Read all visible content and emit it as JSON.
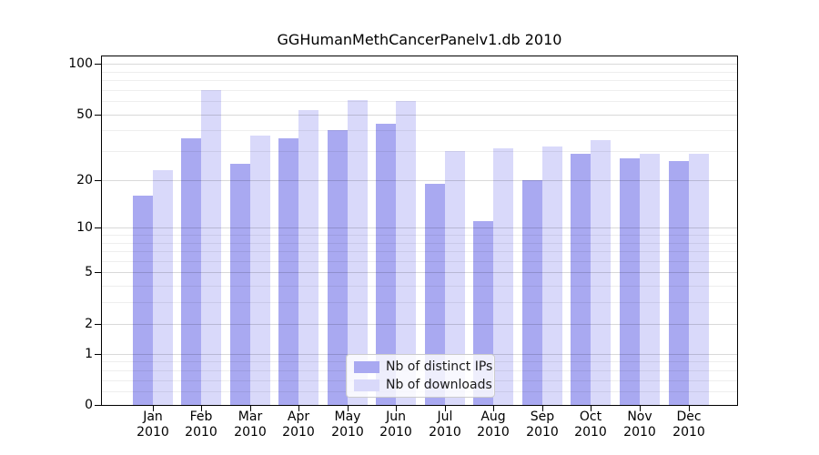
{
  "chart_data": {
    "type": "bar",
    "title": "GGHumanMethCancerPanelv1.db 2010",
    "xlabel": "",
    "ylabel": "",
    "year_label": "2010",
    "categories": [
      "Jan",
      "Feb",
      "Mar",
      "Apr",
      "May",
      "Jun",
      "Jul",
      "Aug",
      "Sep",
      "Oct",
      "Nov",
      "Dec"
    ],
    "series": [
      {
        "name": "Nb of distinct IPs",
        "color": "#a9a9f1",
        "values": [
          16,
          36,
          25,
          36,
          40,
          44,
          19,
          11,
          20,
          29,
          27,
          26
        ]
      },
      {
        "name": "Nb of downloads",
        "color": "#d9d9fa",
        "values": [
          23,
          70,
          37,
          53,
          61,
          60,
          30,
          31,
          32,
          35,
          29,
          29
        ]
      }
    ],
    "y_axis": {
      "scale": "log10(1+value)",
      "tick_labels": [
        "0",
        "1",
        "2",
        "5",
        "10",
        "20",
        "50",
        "100"
      ],
      "tick_values": [
        0,
        1,
        2,
        5,
        10,
        20,
        50,
        100
      ],
      "major_gridlines": [
        1,
        2,
        5,
        10,
        20,
        50,
        100
      ],
      "minor_gridlines": [
        0.2,
        0.4,
        0.6,
        0.8,
        3,
        4,
        6,
        7,
        8,
        9,
        30,
        40,
        60,
        70,
        80,
        90
      ],
      "ylim": [
        0,
        112
      ]
    },
    "legend": {
      "position": "bottom-center",
      "entries": [
        "Nb of distinct IPs",
        "Nb of downloads"
      ]
    },
    "grid": "on, drawn over bars"
  }
}
